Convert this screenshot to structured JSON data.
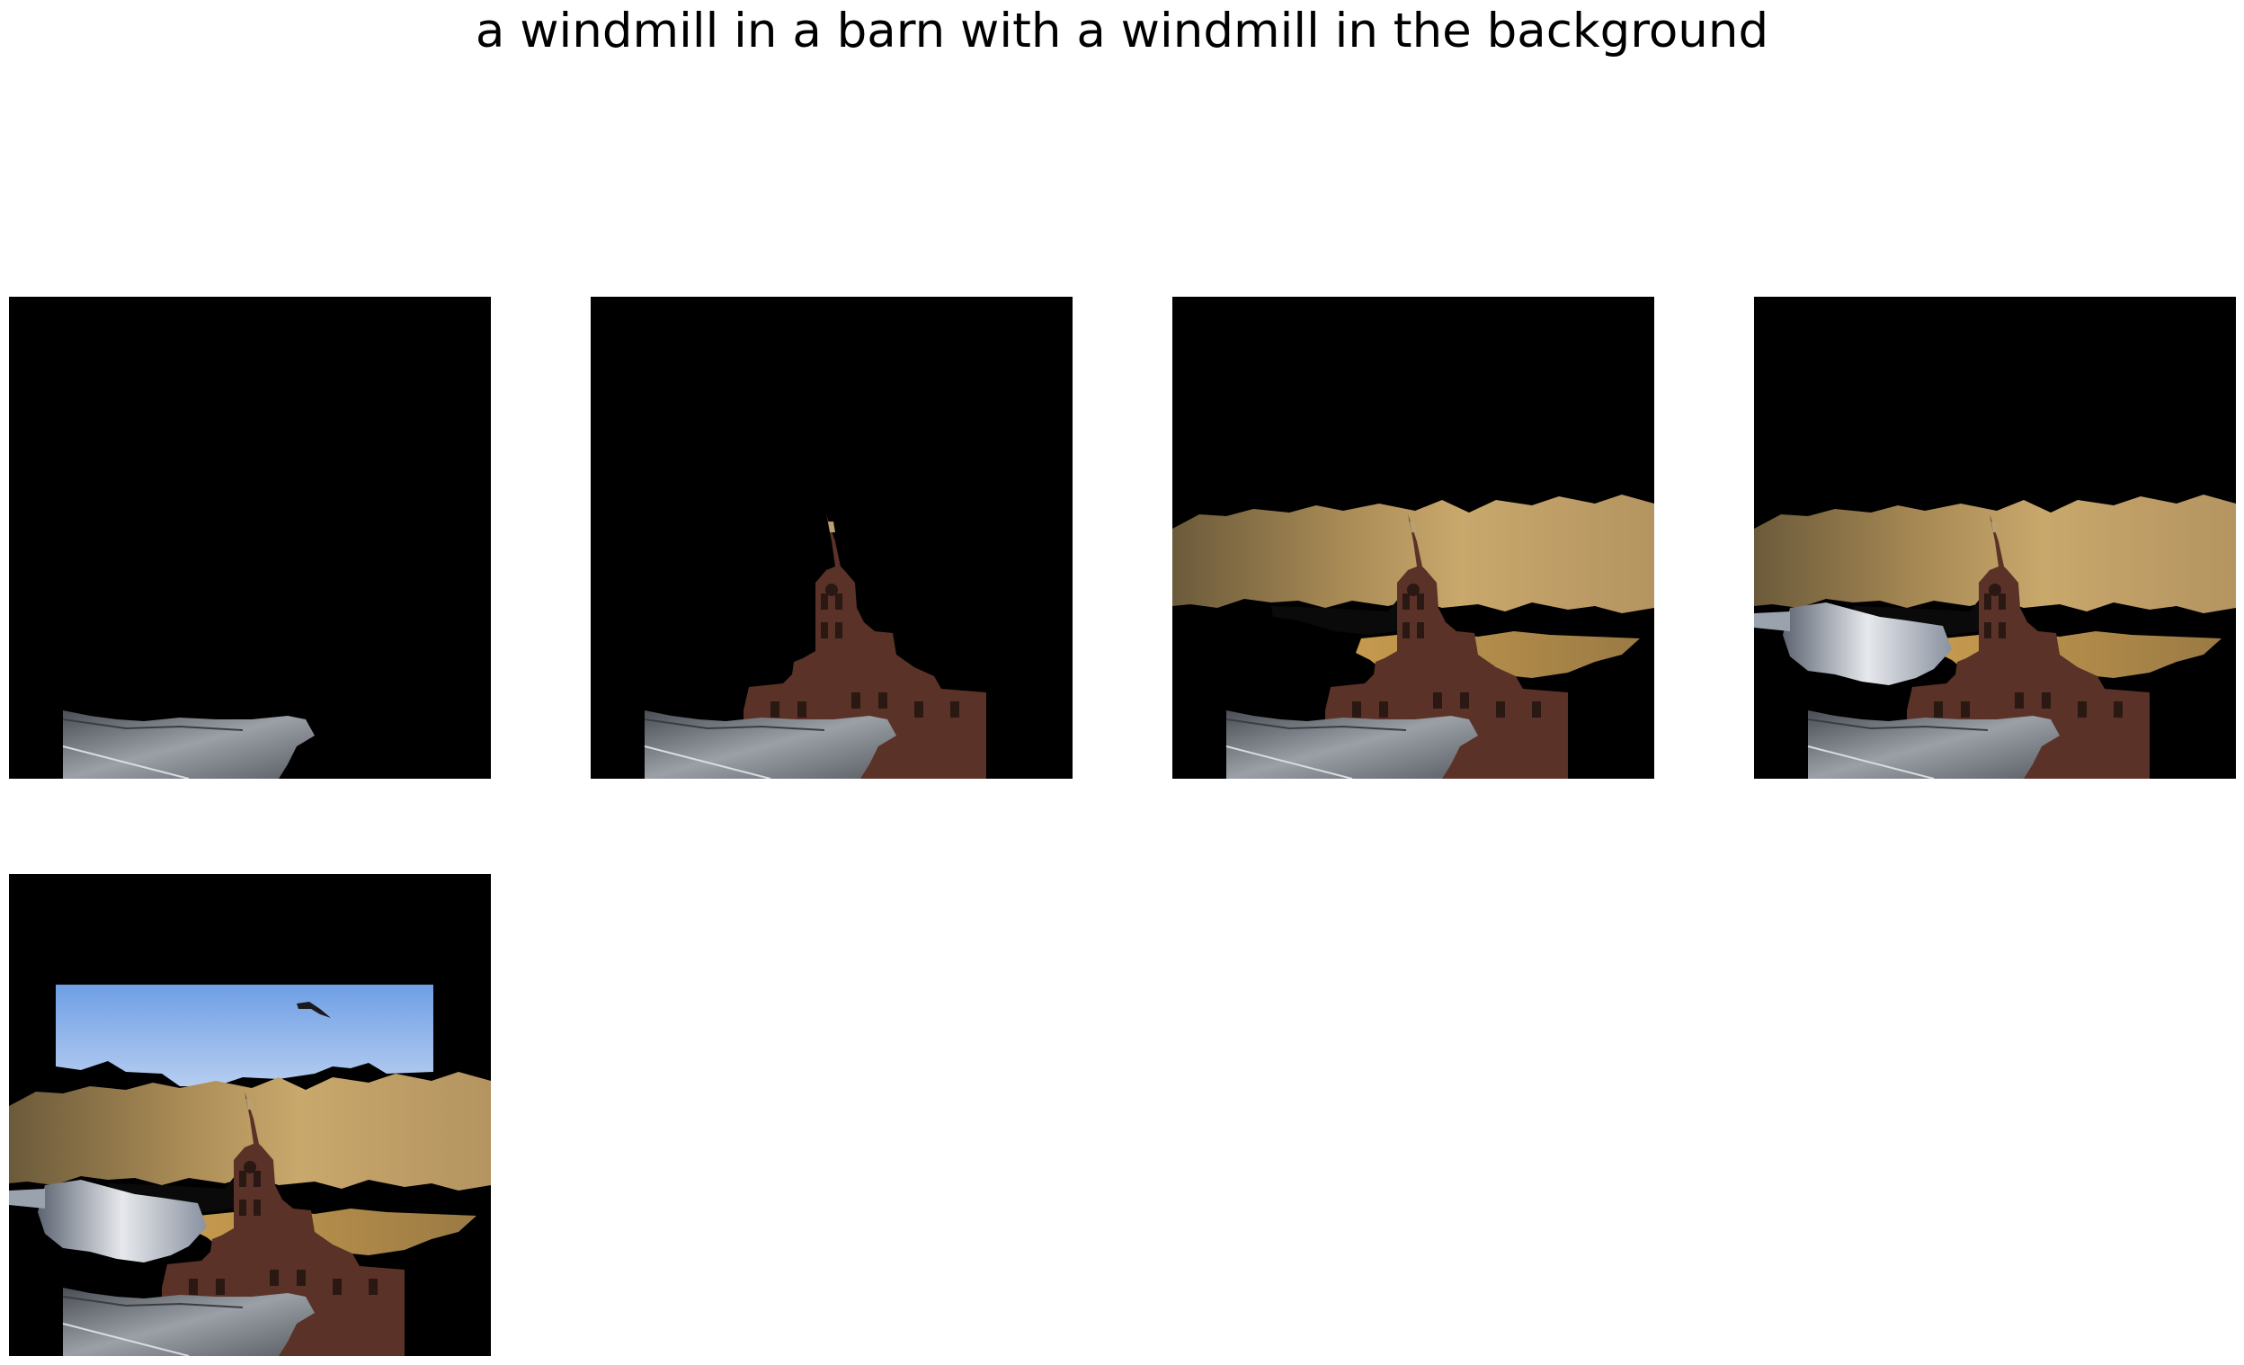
{
  "figure": {
    "title": "a windmill in a barn with a windmill in the background"
  },
  "colors": {
    "mask": "#000000",
    "sky": "#8ab0e8",
    "cloud_gold": "#b0925a",
    "cloud_silver": "#c8ccd2",
    "building": "#5a3228",
    "ground": "#7a7e82"
  },
  "panels": [
    {
      "id": "panel-1",
      "revealed_layers": [
        "ground"
      ]
    },
    {
      "id": "panel-2",
      "revealed_layers": [
        "ground",
        "building"
      ]
    },
    {
      "id": "panel-3",
      "revealed_layers": [
        "ground",
        "building",
        "gold-clouds",
        "airplane"
      ]
    },
    {
      "id": "panel-4",
      "revealed_layers": [
        "ground",
        "building",
        "gold-clouds",
        "airplane",
        "silver-clouds"
      ]
    },
    {
      "id": "panel-5",
      "revealed_layers": [
        "ground",
        "building",
        "gold-clouds",
        "airplane",
        "silver-clouds",
        "sky",
        "bird"
      ]
    }
  ]
}
